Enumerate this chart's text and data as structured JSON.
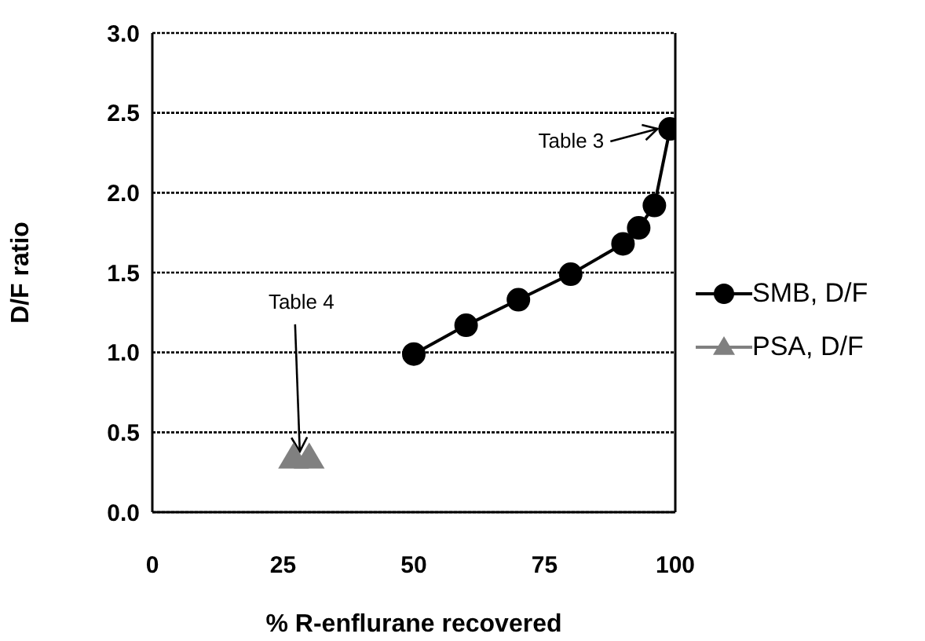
{
  "chart_data": {
    "type": "line",
    "xlabel": "% R-enflurane recovered",
    "ylabel": "D/F ratio",
    "xlim": [
      0,
      100
    ],
    "xticks": [
      0,
      25,
      50,
      75,
      100
    ],
    "ylim": [
      0,
      3
    ],
    "yticks": [
      {
        "value": 0,
        "label": "0.0"
      },
      {
        "value": 0.5,
        "label": "0.5"
      },
      {
        "value": 1,
        "label": "1.0"
      },
      {
        "value": 1.5,
        "label": "1.5"
      },
      {
        "value": 2,
        "label": "2.0"
      },
      {
        "value": 2.5,
        "label": "2.5"
      },
      {
        "value": 3,
        "label": "3.0"
      }
    ],
    "grid": "y",
    "legend": "right",
    "series": [
      {
        "name": "SMB, D/F",
        "color": "#000000",
        "marker": "circle",
        "x": [
          50,
          60,
          70,
          80,
          90,
          93,
          96,
          99
        ],
        "values": [
          0.99,
          1.17,
          1.33,
          1.49,
          1.68,
          1.78,
          1.92,
          2.4
        ]
      },
      {
        "name": "PSA, D/F",
        "type": "scatter",
        "color": "#808080",
        "marker": "triangle",
        "x": [
          27,
          30
        ],
        "values": [
          0.34,
          0.34
        ]
      }
    ],
    "annotations": [
      {
        "text": "Table 3",
        "x": 99,
        "y": 2.4
      },
      {
        "text": "Table 4",
        "x": 28.5,
        "y": 0.34
      }
    ]
  }
}
